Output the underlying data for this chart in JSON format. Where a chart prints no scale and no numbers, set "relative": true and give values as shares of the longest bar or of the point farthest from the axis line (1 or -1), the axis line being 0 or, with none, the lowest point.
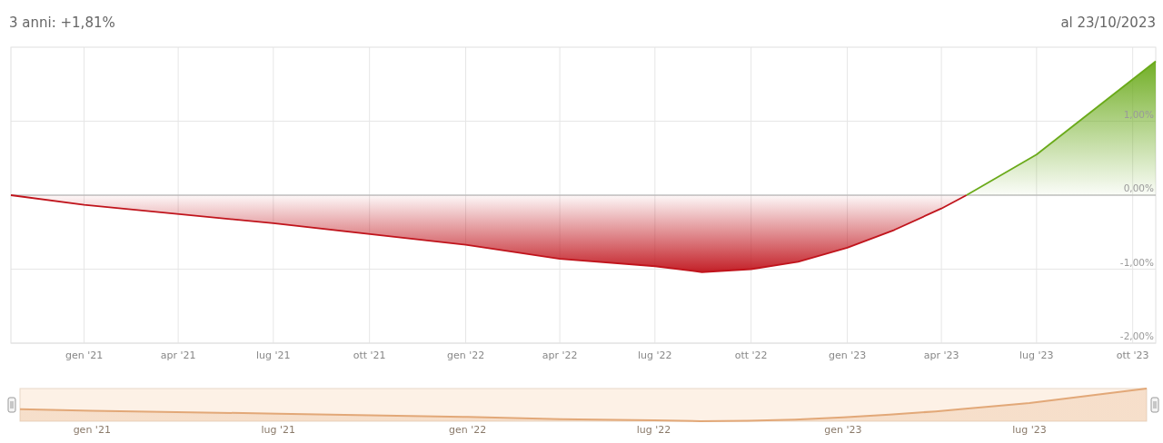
{
  "chart_data": [
    {
      "type": "area",
      "title": "3 anni: +1,81%",
      "annotations": [
        "al 23/10/2023"
      ],
      "xlim": [
        "2020-10-23",
        "2023-10-23"
      ],
      "xticks": [
        {
          "value": "2021-01-01",
          "label": "gen '21"
        },
        {
          "value": "2021-04-01",
          "label": "apr '21"
        },
        {
          "value": "2021-07-01",
          "label": "lug '21"
        },
        {
          "value": "2021-10-01",
          "label": "ott '21"
        },
        {
          "value": "2022-01-01",
          "label": "gen '22"
        },
        {
          "value": "2022-04-01",
          "label": "apr '22"
        },
        {
          "value": "2022-07-01",
          "label": "lug '22"
        },
        {
          "value": "2022-10-01",
          "label": "ott '22"
        },
        {
          "value": "2023-01-01",
          "label": "gen '23"
        },
        {
          "value": "2023-04-01",
          "label": "apr '23"
        },
        {
          "value": "2023-07-01",
          "label": "lug '23"
        },
        {
          "value": "2023-10-01",
          "label": "ott '23"
        }
      ],
      "ylim": [
        -2,
        2
      ],
      "yticks": [
        {
          "value": -2,
          "label": "-2,00%"
        },
        {
          "value": -1,
          "label": "-1,00%"
        },
        {
          "value": 0,
          "label": "0,00%"
        },
        {
          "value": 1,
          "label": "1,00%"
        }
      ],
      "grid": true,
      "ref_lines": [
        {
          "axis": "y",
          "value": 0,
          "color": "#aaaaaa"
        }
      ],
      "series": [
        {
          "color": "#c0141c",
          "x": [
            "2020-10-23",
            "2021-01-01",
            "2021-07-01",
            "2022-01-01",
            "2022-04-01",
            "2022-07-01",
            "2022-08-15",
            "2022-10-01",
            "2022-11-15",
            "2023-01-01",
            "2023-02-15",
            "2023-04-01",
            "2023-04-25"
          ],
          "values": [
            0,
            -0.13,
            -0.38,
            -0.67,
            -0.86,
            -0.96,
            -1.04,
            -1.0,
            -0.9,
            -0.71,
            -0.47,
            -0.18,
            0
          ]
        },
        {
          "color": "#6aaa1a",
          "x": [
            "2023-04-25",
            "2023-07-01",
            "2023-10-23"
          ],
          "values": [
            0,
            0.55,
            1.81
          ]
        }
      ]
    },
    {
      "type": "area",
      "relative": true,
      "tick_labels": "x",
      "xlim": [
        "2020-10-23",
        "2023-10-23"
      ],
      "xticks": [
        {
          "value": "2021-01-01",
          "label": "gen '21"
        },
        {
          "value": "2021-07-01",
          "label": "lug '21"
        },
        {
          "value": "2022-01-01",
          "label": "gen '22"
        },
        {
          "value": "2022-07-01",
          "label": "lug '22"
        },
        {
          "value": "2023-01-01",
          "label": "gen '23"
        },
        {
          "value": "2023-07-01",
          "label": "lug '23"
        }
      ],
      "series": [
        {
          "color": "#e2a878",
          "x": [
            "2020-10-23",
            "2021-01-01",
            "2021-07-01",
            "2022-01-01",
            "2022-04-01",
            "2022-07-01",
            "2022-08-15",
            "2022-10-01",
            "2022-11-15",
            "2023-01-01",
            "2023-02-15",
            "2023-04-01",
            "2023-04-25",
            "2023-07-01",
            "2023-10-23"
          ],
          "values": [
            0.365,
            0.319,
            0.232,
            0.13,
            0.063,
            0.028,
            0,
            0.014,
            0.049,
            0.116,
            0.2,
            0.302,
            0.365,
            0.558,
            1
          ]
        }
      ]
    }
  ]
}
